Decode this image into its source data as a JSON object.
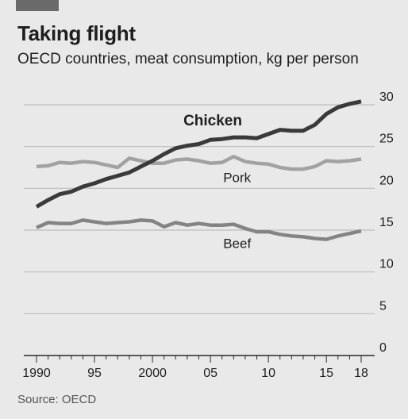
{
  "header": {
    "title": "Taking flight",
    "subtitle": "OECD countries, meat consumption, kg per person"
  },
  "footer": {
    "source": "Source: OECD"
  },
  "colors": {
    "accent_bar": "#6a6a6a",
    "background": "#e9e9e9",
    "gridline": "#bdbdbd",
    "axis": "#2a2a2a",
    "chicken": "#3a3a3a",
    "pork": "#a2a2a2",
    "beef": "#848484",
    "text": "#1e1e1e"
  },
  "chart_data": {
    "type": "line",
    "title": "Taking flight",
    "subtitle": "OECD countries, meat consumption, kg per person",
    "xlim": [
      1990,
      2018
    ],
    "ylim": [
      0,
      30
    ],
    "x_ticks": [
      1990,
      1995,
      2000,
      2005,
      2010,
      2015,
      2018
    ],
    "x_tick_labels": [
      "1990",
      "95",
      "2000",
      "05",
      "10",
      "15",
      "18"
    ],
    "y_ticks": [
      0,
      5,
      10,
      15,
      20,
      25,
      30
    ],
    "y_tick_labels": [
      "0",
      "5",
      "10",
      "15",
      "20",
      "25",
      "30"
    ],
    "y_axis_position": "right",
    "grid": "horizontal",
    "x": [
      1990,
      1991,
      1992,
      1993,
      1994,
      1995,
      1996,
      1997,
      1998,
      1999,
      2000,
      2001,
      2002,
      2003,
      2004,
      2005,
      2006,
      2007,
      2008,
      2009,
      2010,
      2011,
      2012,
      2013,
      2014,
      2015,
      2016,
      2017,
      2018
    ],
    "series": [
      {
        "name": "Chicken",
        "color": "#3a3a3a",
        "values": [
          17.8,
          18.6,
          19.3,
          19.6,
          20.2,
          20.6,
          21.1,
          21.5,
          21.9,
          22.6,
          23.3,
          24.1,
          24.8,
          25.1,
          25.3,
          25.8,
          25.9,
          26.1,
          26.1,
          26.0,
          26.5,
          27.0,
          26.9,
          26.9,
          27.6,
          28.9,
          29.7,
          30.1,
          30.4
        ],
        "label_position": "above-line-near-2005",
        "label_bold": true
      },
      {
        "name": "Pork",
        "color": "#a2a2a2",
        "values": [
          22.6,
          22.7,
          23.1,
          23.0,
          23.2,
          23.1,
          22.8,
          22.5,
          23.6,
          23.3,
          23.0,
          23.0,
          23.4,
          23.5,
          23.3,
          23.0,
          23.1,
          23.8,
          23.2,
          23.0,
          22.9,
          22.5,
          22.3,
          22.3,
          22.6,
          23.3,
          23.2,
          23.3,
          23.5
        ],
        "label_position": "below-line-near-2007",
        "label_bold": false
      },
      {
        "name": "Beef",
        "color": "#848484",
        "values": [
          15.3,
          15.9,
          15.8,
          15.8,
          16.2,
          16.0,
          15.8,
          15.9,
          16.0,
          16.2,
          16.1,
          15.4,
          15.9,
          15.6,
          15.8,
          15.6,
          15.6,
          15.7,
          15.2,
          14.8,
          14.8,
          14.5,
          14.3,
          14.2,
          14.0,
          13.9,
          14.3,
          14.6,
          14.9
        ],
        "label_position": "below-line-near-2007",
        "label_bold": false
      }
    ]
  }
}
